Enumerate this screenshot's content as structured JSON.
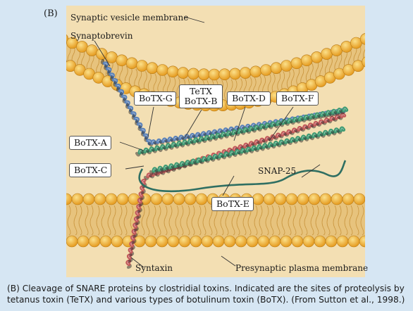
{
  "panel_label": "(B)",
  "labels": {
    "vesicle_membrane": "Synaptic vesicle membrane",
    "synaptobrevin": "Synaptobrevin",
    "snap25": "SNAP-25",
    "syntaxin": "Syntaxin",
    "plasma_membrane": "Presynaptic plasma membrane"
  },
  "toxins": {
    "botx_g": "BoTX-G",
    "tetx": "TeTX",
    "botx_b": "BoTX-B",
    "botx_d": "BoTX-D",
    "botx_f": "BoTX-F",
    "botx_a": "BoTX-A",
    "botx_c": "BoTX-C",
    "botx_e": "BoTX-E"
  },
  "caption": "(B) Cleavage of SNARE proteins by clostridial toxins. Indicated are the sites of proteolysis by tetanus toxin (TeTX) and various types of botulinum toxin (BoTX). (From Sutton et al., 1998.)",
  "colors": {
    "background": "#d6e6f3",
    "panel": "#f3dfb3",
    "membrane_head": "#f2b23c",
    "synaptobrevin": "#5b82b8",
    "syntaxin": "#c25a5a",
    "snap25": "#3f9a72"
  }
}
